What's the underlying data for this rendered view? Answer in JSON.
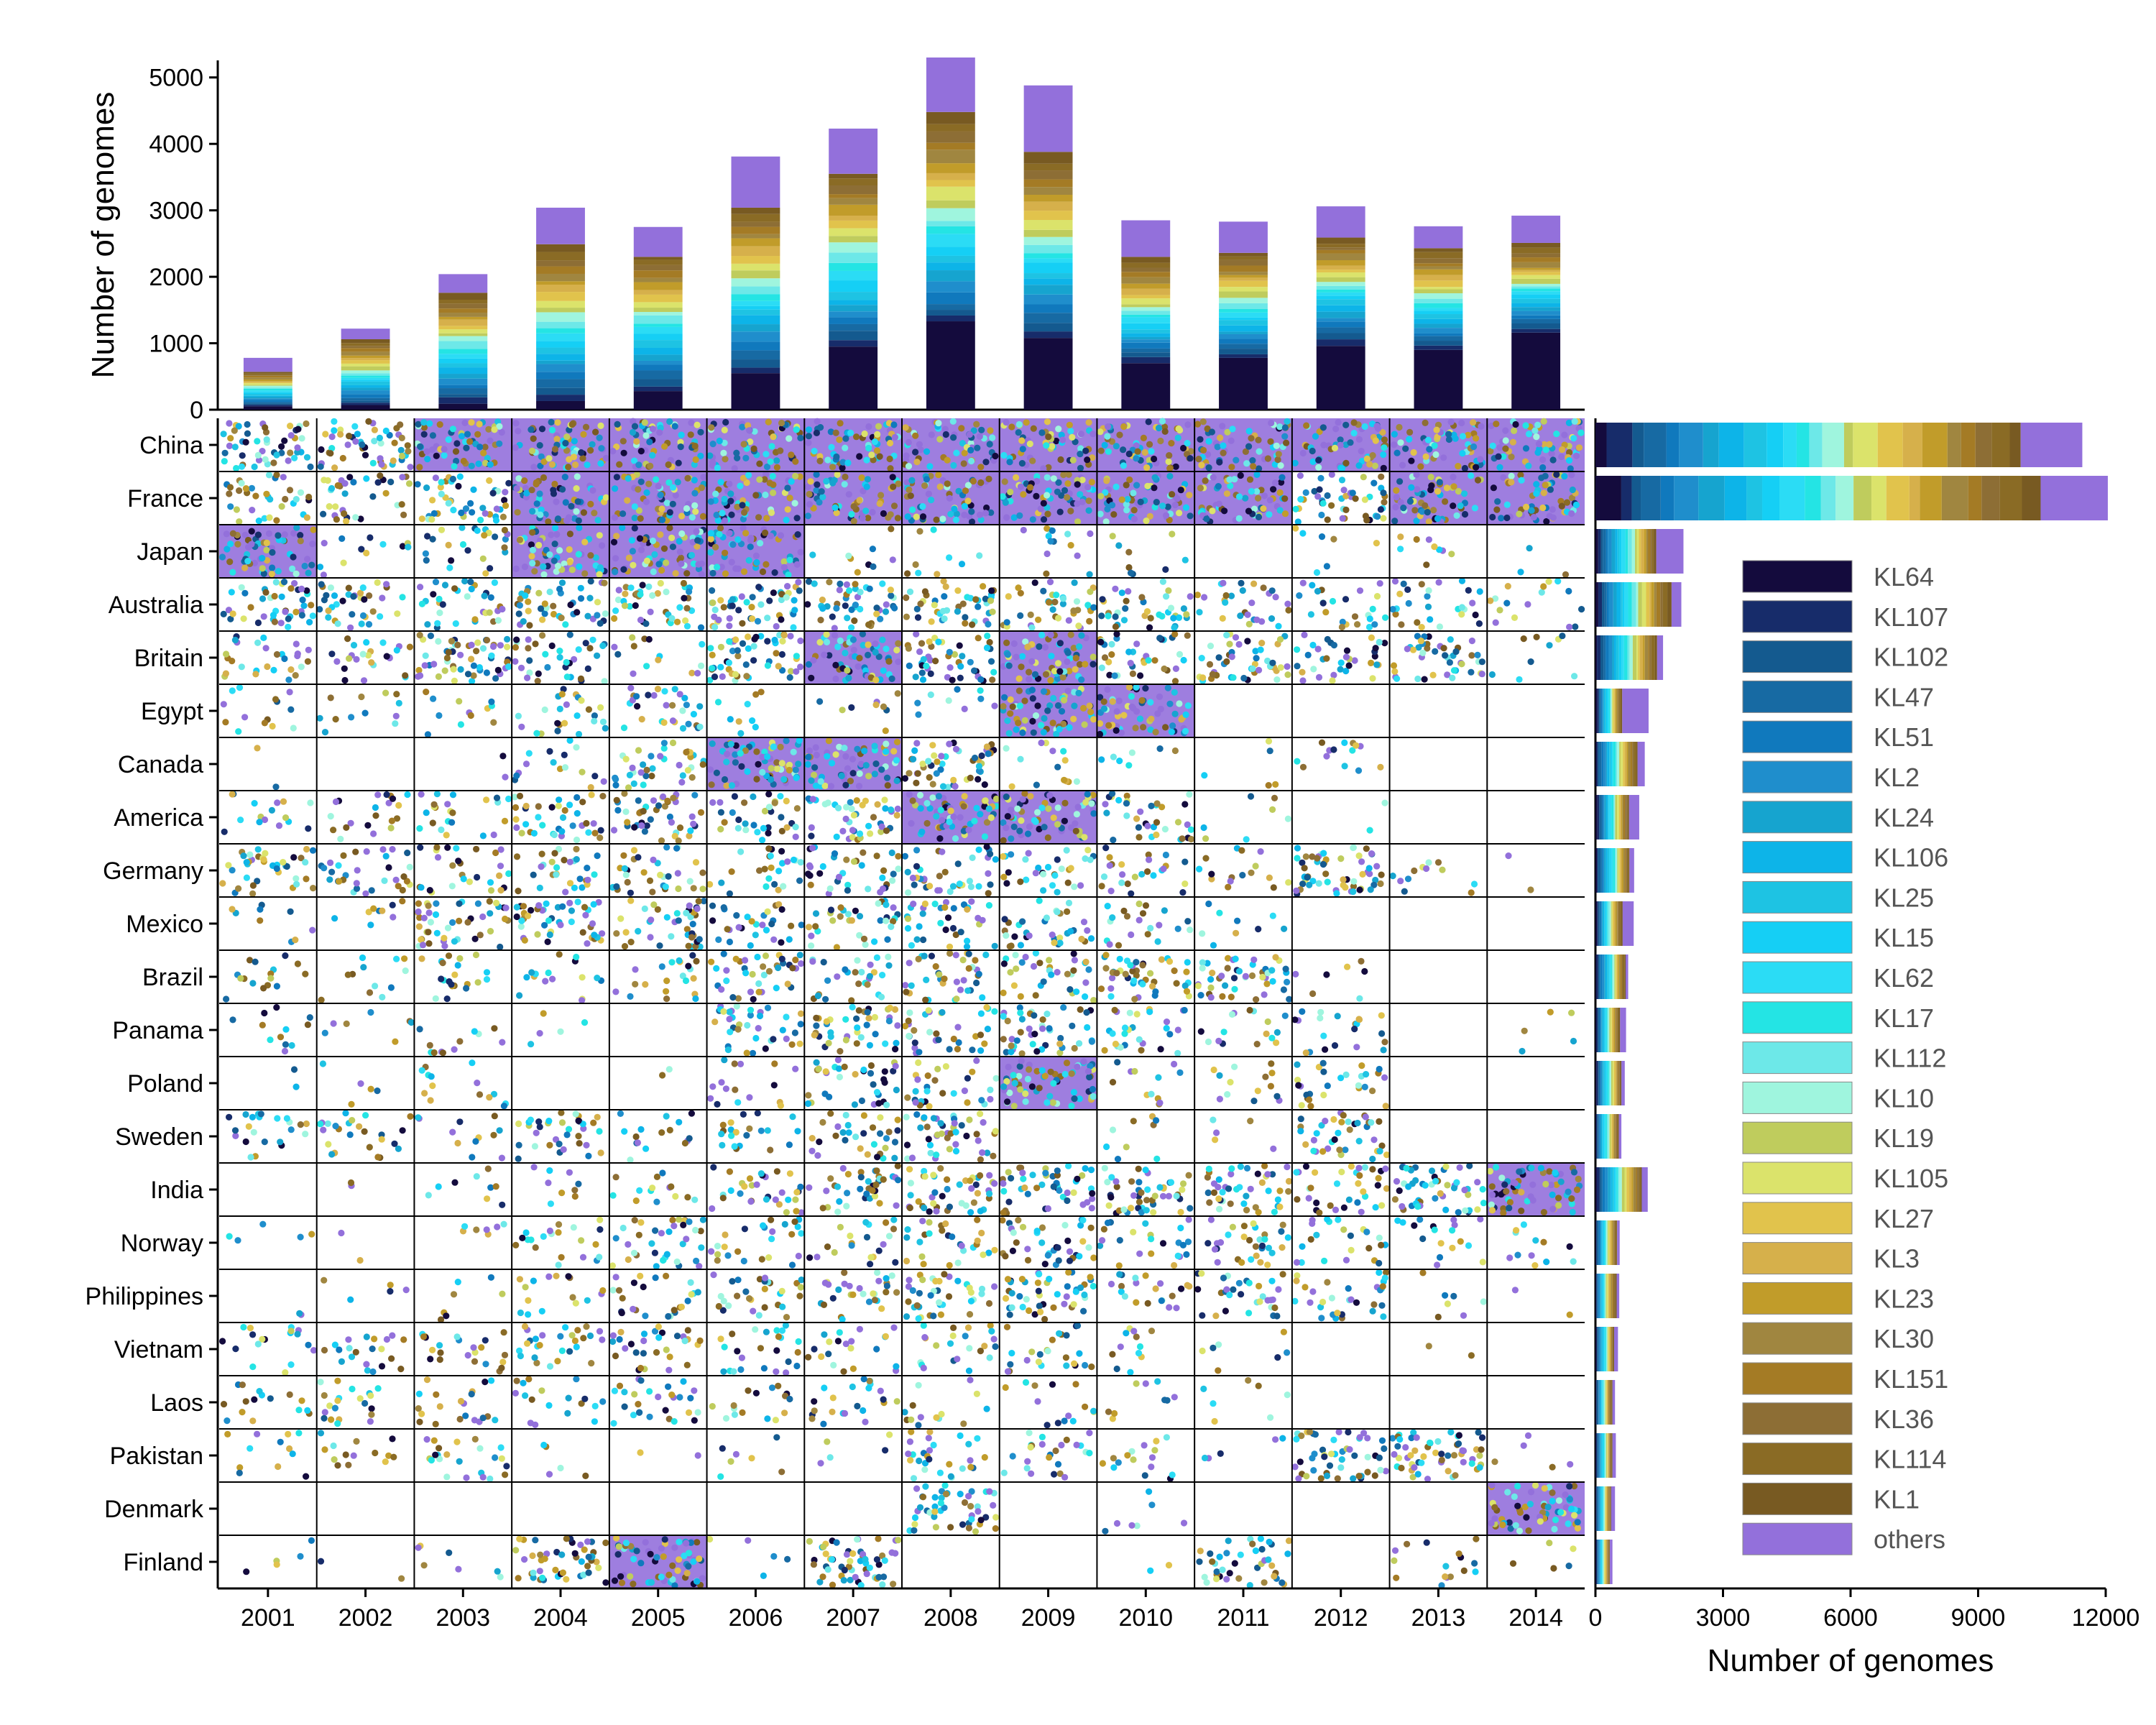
{
  "chart_data": [
    {
      "type": "bar",
      "name": "top-stacked-bar",
      "stacked": true,
      "ylabel": "Number of genomes",
      "ylim": [
        0,
        5300
      ],
      "yticks": [
        0,
        1000,
        2000,
        3000,
        4000,
        5000
      ],
      "categories": [
        "2001",
        "2002",
        "2003",
        "2004",
        "2005",
        "2006",
        "2007",
        "2008",
        "2009",
        "2010",
        "2011",
        "2012",
        "2013",
        "2014"
      ],
      "totals": [
        780,
        1220,
        2040,
        3040,
        2750,
        3810,
        4230,
        5300,
        4880,
        2850,
        2830,
        3060,
        2760,
        2920
      ],
      "others": [
        210,
        160,
        280,
        550,
        450,
        770,
        680,
        820,
        1000,
        550,
        470,
        470,
        330,
        410
      ],
      "kl64": [
        50,
        70,
        90,
        130,
        280,
        550,
        950,
        1330,
        1080,
        700,
        780,
        960,
        900,
        1160
      ]
    },
    {
      "type": "scatter",
      "name": "country-by-year-dot-grid",
      "xticks": [
        "2001",
        "2002",
        "2003",
        "2004",
        "2005",
        "2006",
        "2007",
        "2008",
        "2009",
        "2010",
        "2011",
        "2012",
        "2013",
        "2014"
      ],
      "yticks": [
        "China",
        "France",
        "Japan",
        "Australia",
        "Britain",
        "Egypt",
        "Canada",
        "America",
        "Germany",
        "Mexico",
        "Brazil",
        "Panama",
        "Poland",
        "Sweden",
        "India",
        "Norway",
        "Philippines",
        "Vietnam",
        "Laos",
        "Pakistan",
        "Denmark",
        "Finland"
      ],
      "density": [
        [
          45,
          45,
          55,
          55,
          55,
          55,
          55,
          55,
          55,
          55,
          55,
          55,
          55,
          55
        ],
        [
          30,
          30,
          42,
          55,
          55,
          55,
          55,
          55,
          55,
          55,
          55,
          42,
          55,
          55
        ],
        [
          55,
          10,
          22,
          55,
          55,
          55,
          8,
          8,
          12,
          8,
          0,
          6,
          8,
          3
        ],
        [
          38,
          32,
          30,
          40,
          38,
          45,
          42,
          40,
          36,
          32,
          25,
          22,
          24,
          14
        ],
        [
          24,
          22,
          50,
          32,
          12,
          50,
          55,
          42,
          55,
          34,
          42,
          30,
          38,
          8
        ],
        [
          12,
          10,
          10,
          22,
          26,
          8,
          8,
          8,
          55,
          55,
          0,
          0,
          0,
          0
        ],
        [
          2,
          0,
          2,
          14,
          32,
          55,
          55,
          45,
          12,
          6,
          4,
          12,
          0,
          0
        ],
        [
          14,
          18,
          20,
          34,
          40,
          30,
          38,
          55,
          55,
          30,
          6,
          2,
          0,
          0
        ],
        [
          34,
          28,
          24,
          26,
          30,
          22,
          32,
          34,
          28,
          22,
          14,
          50,
          10,
          2
        ],
        [
          8,
          8,
          40,
          42,
          36,
          26,
          30,
          30,
          30,
          18,
          8,
          0,
          0,
          0
        ],
        [
          14,
          10,
          18,
          14,
          18,
          34,
          24,
          34,
          30,
          40,
          40,
          6,
          0,
          0
        ],
        [
          10,
          6,
          10,
          4,
          0,
          32,
          36,
          30,
          40,
          24,
          14,
          18,
          0,
          4
        ],
        [
          2,
          4,
          12,
          0,
          2,
          14,
          32,
          26,
          55,
          10,
          12,
          24,
          0,
          0
        ],
        [
          20,
          22,
          10,
          30,
          14,
          18,
          28,
          40,
          0,
          8,
          4,
          34,
          0,
          0
        ],
        [
          0,
          2,
          8,
          8,
          12,
          28,
          34,
          40,
          42,
          42,
          38,
          30,
          44,
          55
        ],
        [
          4,
          2,
          6,
          18,
          32,
          22,
          18,
          24,
          34,
          20,
          28,
          20,
          16,
          10
        ],
        [
          2,
          4,
          6,
          14,
          22,
          26,
          26,
          34,
          40,
          18,
          28,
          28,
          6,
          2
        ],
        [
          16,
          18,
          20,
          24,
          26,
          22,
          18,
          20,
          22,
          10,
          6,
          0,
          2,
          0
        ],
        [
          14,
          18,
          18,
          16,
          24,
          14,
          20,
          12,
          12,
          8,
          6,
          0,
          0,
          0
        ],
        [
          10,
          12,
          20,
          4,
          2,
          6,
          4,
          24,
          22,
          14,
          4,
          44,
          50,
          4
        ],
        [
          0,
          0,
          0,
          0,
          0,
          0,
          0,
          42,
          0,
          6,
          0,
          0,
          0,
          55
        ],
        [
          4,
          2,
          6,
          42,
          55,
          4,
          50,
          0,
          0,
          2,
          36,
          0,
          14,
          4
        ]
      ]
    },
    {
      "type": "bar",
      "name": "right-horizontal-stacked-bar",
      "orientation": "horizontal",
      "stacked": true,
      "xlabel": "Number of genomes",
      "xlim": [
        0,
        12000
      ],
      "xticks": [
        0,
        3000,
        6000,
        9000,
        12000
      ],
      "categories": [
        "China",
        "France",
        "Japan",
        "Australia",
        "Britain",
        "Egypt",
        "Canada",
        "America",
        "Germany",
        "Mexico",
        "Brazil",
        "Panama",
        "Poland",
        "Sweden",
        "India",
        "Norway",
        "Philippines",
        "Vietnam",
        "Laos",
        "Pakistan",
        "Denmark",
        "Finland"
      ],
      "totals": [
        11450,
        12050,
        2070,
        2020,
        1590,
        1250,
        1160,
        1030,
        910,
        900,
        770,
        720,
        690,
        610,
        1230,
        570,
        560,
        530,
        460,
        480,
        460,
        400
      ],
      "others": [
        1450,
        1580,
        640,
        230,
        140,
        620,
        170,
        240,
        110,
        260,
        60,
        140,
        80,
        60,
        140,
        60,
        60,
        90,
        60,
        80,
        90,
        60
      ]
    }
  ],
  "legend": {
    "items": [
      {
        "label": "KL64",
        "color": "#140b3d"
      },
      {
        "label": "KL107",
        "color": "#172c6a"
      },
      {
        "label": "KL102",
        "color": "#145a8f"
      },
      {
        "label": "KL47",
        "color": "#176aa3"
      },
      {
        "label": "KL51",
        "color": "#1079bd"
      },
      {
        "label": "KL2",
        "color": "#1f8ecc"
      },
      {
        "label": "KL24",
        "color": "#16a4cf"
      },
      {
        "label": "KL106",
        "color": "#0db4e8"
      },
      {
        "label": "KL25",
        "color": "#1ec3e3"
      },
      {
        "label": "KL15",
        "color": "#15cff5"
      },
      {
        "label": "KL62",
        "color": "#2bdcf5"
      },
      {
        "label": "KL17",
        "color": "#24e4e4"
      },
      {
        "label": "KL112",
        "color": "#6de8e8"
      },
      {
        "label": "KL10",
        "color": "#9ff5de"
      },
      {
        "label": "KL19",
        "color": "#bfcc5d"
      },
      {
        "label": "KL105",
        "color": "#dbe36b"
      },
      {
        "label": "KL27",
        "color": "#e1c34c"
      },
      {
        "label": "KL3",
        "color": "#d6b04b"
      },
      {
        "label": "KL23",
        "color": "#c19c2a"
      },
      {
        "label": "KL30",
        "color": "#a08640"
      },
      {
        "label": "KL151",
        "color": "#a47b25"
      },
      {
        "label": "KL36",
        "color": "#8d6e35"
      },
      {
        "label": "KL114",
        "color": "#8a6b25"
      },
      {
        "label": "KL1",
        "color": "#785a22"
      },
      {
        "label": "others",
        "color": "#9370db"
      }
    ]
  }
}
